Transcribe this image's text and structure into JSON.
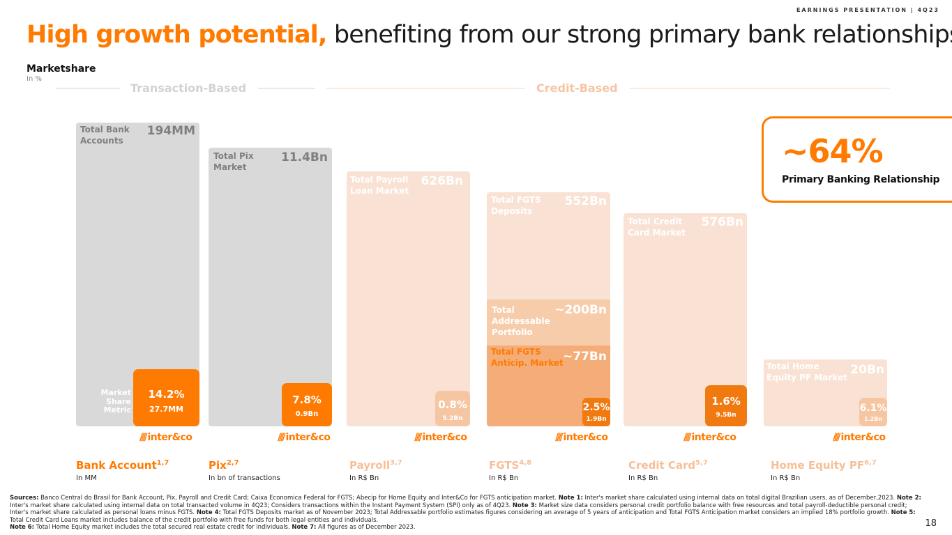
{
  "header": {
    "tag": "EARNINGS PRESENTATION | 4Q23",
    "title_highlight": "High growth potential,",
    "title_rest": " benefiting from our strong primary bank relationships",
    "subtitle": "Marketshare",
    "unit": "In %"
  },
  "categories": {
    "transaction": "Transaction-Based",
    "credit": "Credit-Based"
  },
  "legend": {
    "market_share": "Market Share",
    "metric": "Metric"
  },
  "logo_text": "inter&co",
  "panels": [
    {
      "label": "Total Bank Accounts",
      "total": "194MM",
      "share": "14.2%",
      "metric": "27.7MM",
      "product": "Bank Account",
      "notes": "1,7",
      "unit": "In MM"
    },
    {
      "label": "Total Pix Market",
      "total": "11.4Bn",
      "share": "7.8%",
      "metric": "0.9Bn",
      "product": "Pix",
      "notes": "2,7",
      "unit": "In bn of transactions"
    },
    {
      "label": "Total Payroll Loan Market",
      "total": "626Bn",
      "share": "0.8%",
      "metric": "5.2Bn",
      "product": "Payroll",
      "notes": "3,7",
      "unit": "In R$ Bn"
    },
    {
      "label": "Total FGTS Deposits",
      "total": "552Bn",
      "share": "2.5%",
      "metric": "1.9Bn",
      "product": "FGTS",
      "notes": "4,8",
      "unit": "In R$ Bn",
      "sub1_label": "Total Addressable Portfolio",
      "sub1_value": "~200Bn",
      "sub2_label": "Total FGTS Anticip. Market",
      "sub2_value": "~77Bn"
    },
    {
      "label": "Total Credit Card Market",
      "total": "576Bn",
      "share": "1.6%",
      "metric": "9.5Bn",
      "product": "Credit Card",
      "notes": "5,7",
      "unit": "In R$ Bn"
    },
    {
      "label": "Total Home Equity PF Market",
      "total": "20Bn",
      "share": "6.1%",
      "metric": "1.2Bn",
      "product": "Home Equity PF",
      "notes": "6,7",
      "unit": "In R$ Bn"
    }
  ],
  "callout": {
    "value": "~64%",
    "label": "Primary Banking Relationship"
  },
  "sources": [
    {
      "b": "Sources:",
      "t": " Banco Central do Brasil for Bank Account, Pix, Payroll and Credit Card; Caixa Economica Federal for FGTS; Abecip for Home Equity and Inter&Co for FGTS anticipation market. "
    },
    {
      "b": "Note 1:",
      "t": " Inter's market share calculated using internal data on total digital Brazilian users, as of December,2023. "
    },
    {
      "b": "Note 2:",
      "t": " Inter's market share calculated using internal data on total transacted volume in 4Q23; Considers transactions within the Instant Payment System (SPI) only as of 4Q23. "
    },
    {
      "b": "Note 3:",
      "t": " Market size data considers personal credit portfolio balance with free resources and total payroll-deductible personal credit; Inter's market share calculated as personal loans minus FGTS. "
    },
    {
      "b": "Note 4:",
      "t": " Total FGTS Deposits market as of November 2023; Total Addressable portfolio estimates figures considering an average of 5 years of anticipation and Total FGTS Anticipation market considers an implied 18% portfolio growth. "
    },
    {
      "b": "Note 5:",
      "t": " Total Credit Card Loans market includes balance of the credit portfolio with free funds for both legal entities and individuals. "
    },
    {
      "b": "Note 6:",
      "t": " Total Home Equity market includes the total secured real estate credit for individuals. "
    },
    {
      "b": "Note 7:",
      "t": " All figures as of December 2023."
    }
  ],
  "page_number": "18",
  "colors": {
    "accent": "#ff7a00",
    "grey_panel": "#d9d9d9",
    "peach_panel": "#f9e2d3",
    "peach_mid": "#f7ccab",
    "peach_dark": "#f4ad78"
  }
}
